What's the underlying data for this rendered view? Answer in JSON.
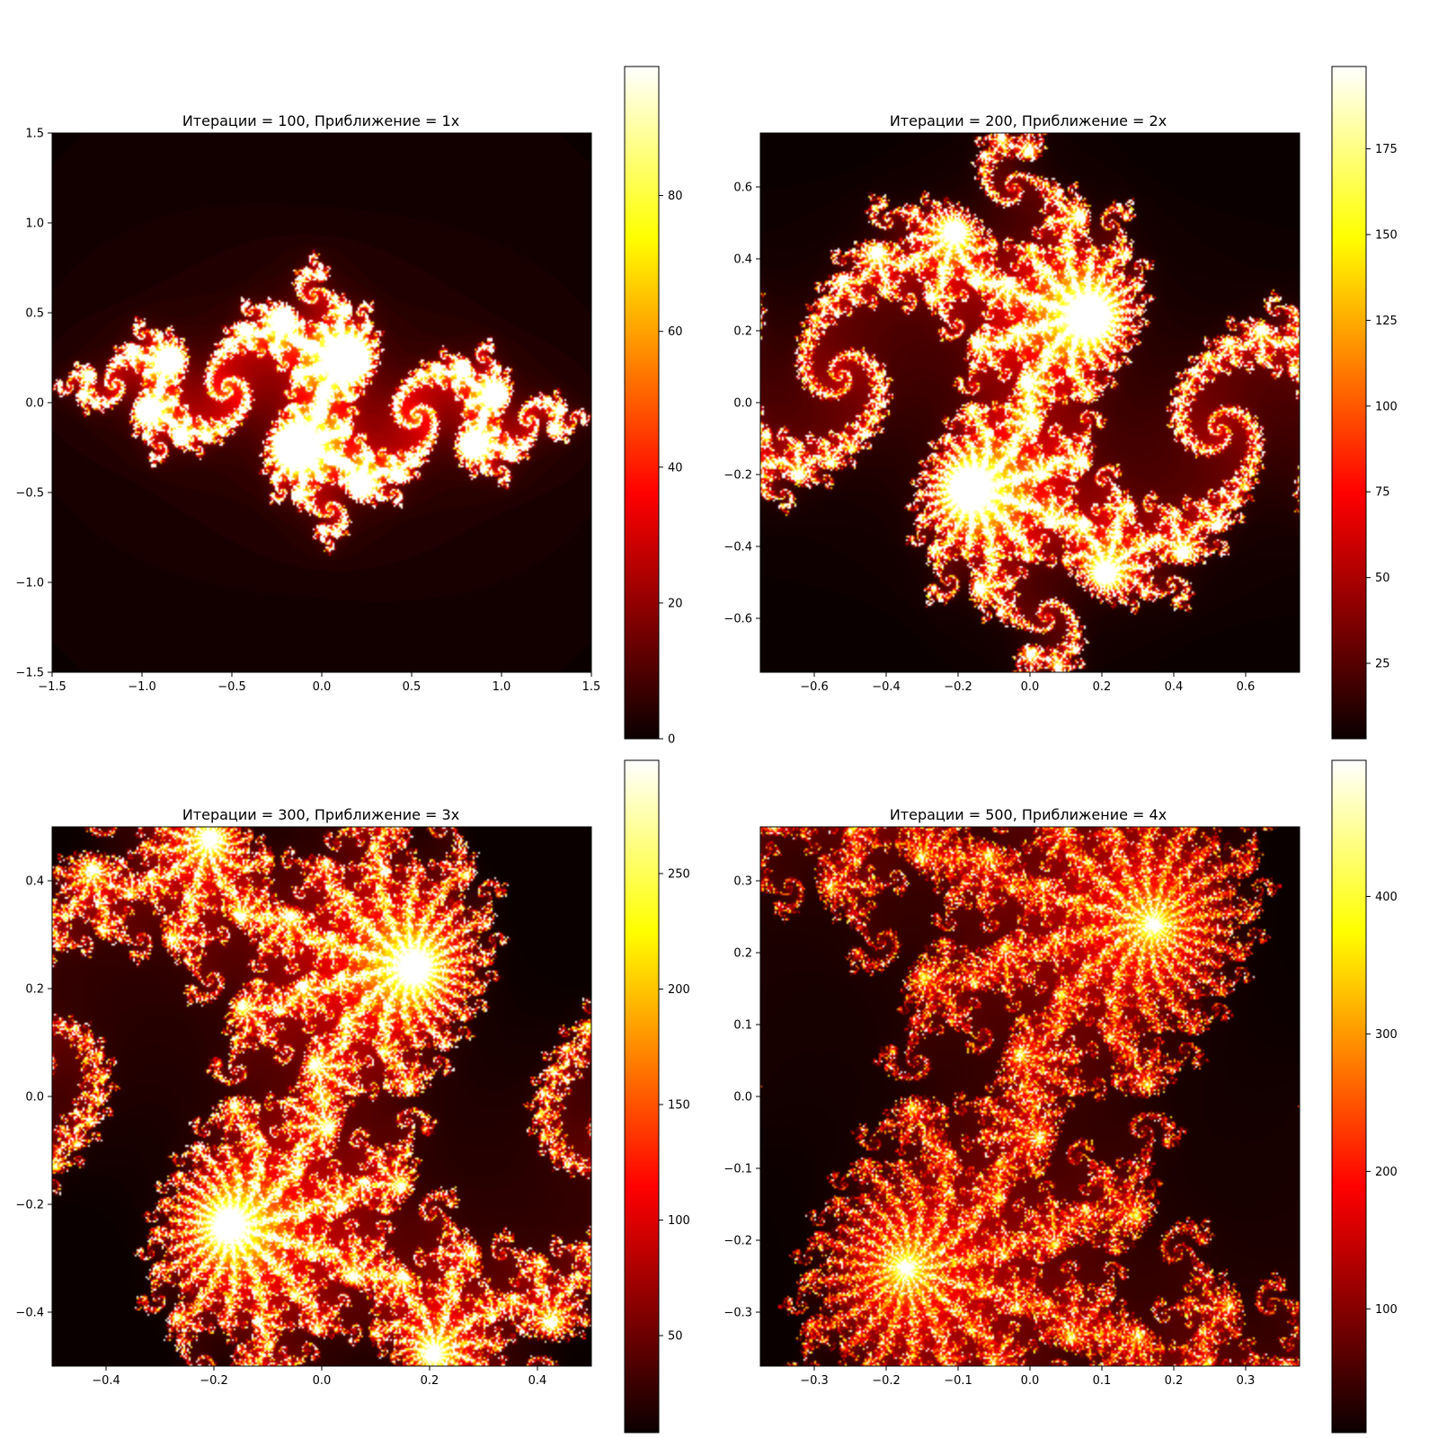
{
  "colormap": {
    "name": "hot",
    "stops": [
      "#0b0000",
      "#ff0000",
      "#ffff00",
      "#ffffff"
    ]
  },
  "chart_data": [
    {
      "type": "heatmap",
      "title": "Итерации = 100, Приближение = 1x",
      "max_iter": 100,
      "zoom": 1,
      "xlim": [
        -1.5,
        1.5
      ],
      "ylim": [
        -1.5,
        1.5
      ],
      "xticks": [
        -1.5,
        -1.0,
        -0.5,
        0.0,
        0.5,
        1.0,
        1.5
      ],
      "xtick_labels": [
        "−1.5",
        "−1.0",
        "−0.5",
        "0.0",
        "0.5",
        "1.0",
        "1.5"
      ],
      "yticks": [
        -1.5,
        -1.0,
        -0.5,
        0.0,
        0.5,
        1.0,
        1.5
      ],
      "ytick_labels": [
        "−1.5",
        "−1.0",
        "−0.5",
        "0.0",
        "0.5",
        "1.0",
        "1.5"
      ],
      "colorbar": {
        "range": [
          0,
          99
        ],
        "ticks": [
          0,
          20,
          40,
          60,
          80
        ],
        "tick_labels": [
          "0",
          "20",
          "40",
          "60",
          "80"
        ]
      }
    },
    {
      "type": "heatmap",
      "title": "Итерации = 200, Приближение = 2x",
      "max_iter": 200,
      "zoom": 2,
      "xlim": [
        -0.75,
        0.75
      ],
      "ylim": [
        -0.75,
        0.75
      ],
      "xticks": [
        -0.6,
        -0.4,
        -0.2,
        0.0,
        0.2,
        0.4,
        0.6
      ],
      "xtick_labels": [
        "−0.6",
        "−0.4",
        "−0.2",
        "0.0",
        "0.2",
        "0.4",
        "0.6"
      ],
      "yticks": [
        -0.6,
        -0.4,
        -0.2,
        0.0,
        0.2,
        0.4,
        0.6
      ],
      "ytick_labels": [
        "−0.6",
        "−0.4",
        "−0.2",
        "0.0",
        "0.2",
        "0.4",
        "0.6"
      ],
      "colorbar": {
        "range": [
          3,
          199
        ],
        "ticks": [
          25,
          50,
          75,
          100,
          125,
          150,
          175
        ],
        "tick_labels": [
          "25",
          "50",
          "75",
          "100",
          "125",
          "150",
          "175"
        ]
      }
    },
    {
      "type": "heatmap",
      "title": "Итерации = 300, Приближение = 3x",
      "max_iter": 300,
      "zoom": 3,
      "xlim": [
        -0.5,
        0.5
      ],
      "ylim": [
        -0.5,
        0.5
      ],
      "xticks": [
        -0.4,
        -0.2,
        0.0,
        0.2,
        0.4
      ],
      "xtick_labels": [
        "−0.4",
        "−0.2",
        "0.0",
        "0.2",
        "0.4"
      ],
      "yticks": [
        -0.4,
        -0.2,
        0.0,
        0.2,
        0.4
      ],
      "ytick_labels": [
        "−0.4",
        "−0.2",
        "0.0",
        "0.2",
        "0.4"
      ],
      "colorbar": {
        "range": [
          8,
          299
        ],
        "ticks": [
          50,
          100,
          150,
          200,
          250
        ],
        "tick_labels": [
          "50",
          "100",
          "150",
          "200",
          "250"
        ]
      }
    },
    {
      "type": "heatmap",
      "title": "Итерации = 500, Приближение = 4x",
      "max_iter": 500,
      "zoom": 4,
      "xlim": [
        -0.375,
        0.375
      ],
      "ylim": [
        -0.375,
        0.375
      ],
      "xticks": [
        -0.3,
        -0.2,
        -0.1,
        0.0,
        0.1,
        0.2,
        0.3
      ],
      "xtick_labels": [
        "−0.3",
        "−0.2",
        "−0.1",
        "0.0",
        "0.1",
        "0.2",
        "0.3"
      ],
      "yticks": [
        -0.3,
        -0.2,
        -0.1,
        0.0,
        0.1,
        0.2,
        0.3
      ],
      "ytick_labels": [
        "−0.3",
        "−0.2",
        "−0.1",
        "0.0",
        "0.1",
        "0.2",
        "0.3"
      ],
      "colorbar": {
        "range": [
          10,
          499
        ],
        "ticks": [
          100,
          200,
          300,
          400
        ],
        "tick_labels": [
          "100",
          "200",
          "300",
          "400"
        ]
      }
    }
  ]
}
